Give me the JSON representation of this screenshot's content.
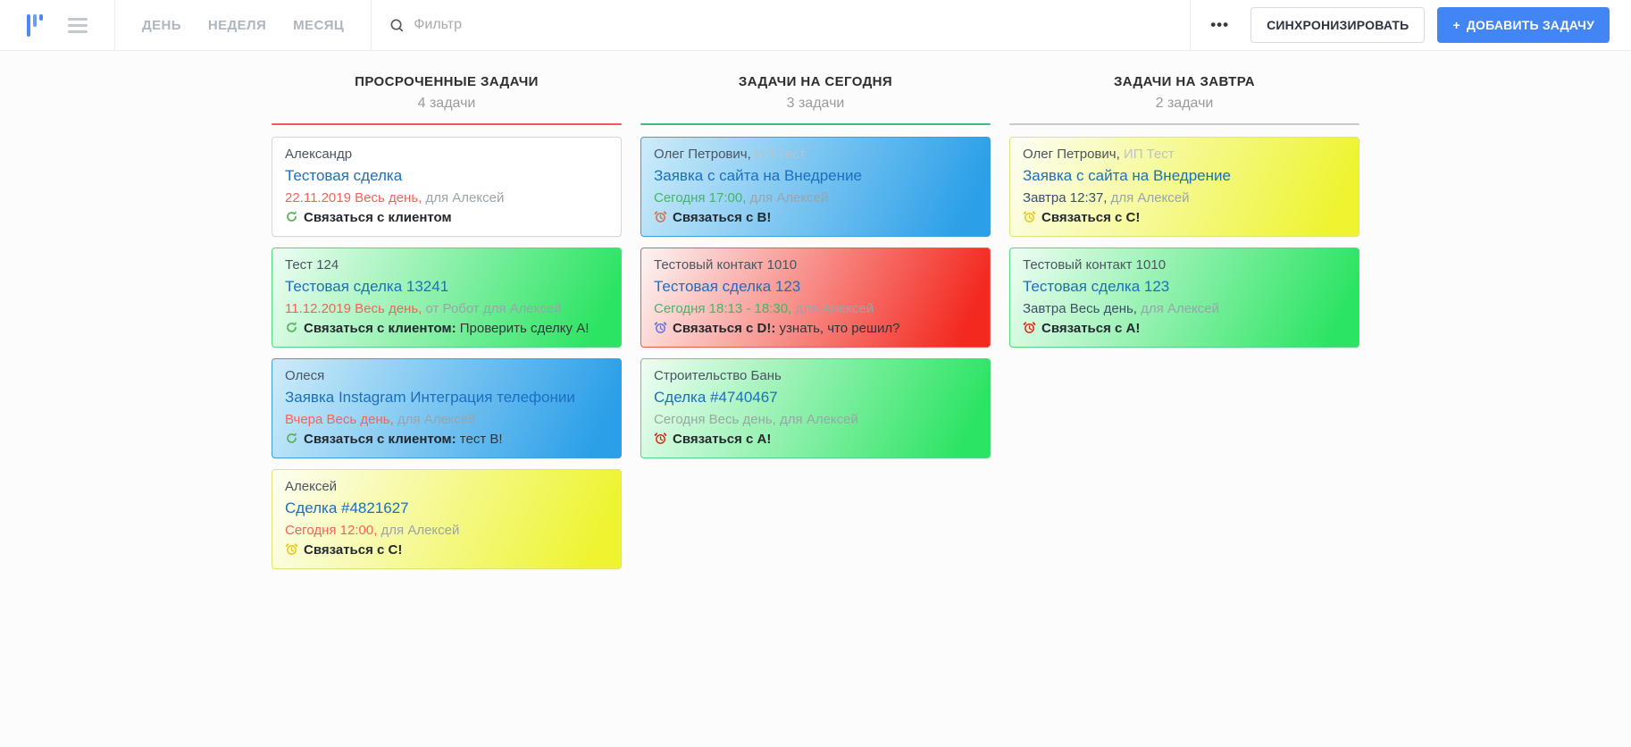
{
  "topbar": {
    "tabs": [
      {
        "label": "ДЕНЬ"
      },
      {
        "label": "НЕДЕЛЯ"
      },
      {
        "label": "МЕСЯЦ"
      }
    ],
    "filter_placeholder": "Фильтр",
    "filter_value": "",
    "more_label": "•••",
    "sync_label": "СИНХРОНИЗИРОВАТЬ",
    "add_button": {
      "icon": "+",
      "label": "ДОБАВИТЬ ЗАДАЧУ",
      "color": "#4285f4"
    }
  },
  "board": {
    "columns": [
      {
        "title": "ПРОСРОЧЕННЫЕ ЗАДАЧИ",
        "count": "4 задачи",
        "underline_color": "#f15b55",
        "cards": [
          {
            "contact": "Александр",
            "company": "",
            "title": "Тестовая сделка",
            "when": "22.11.2019 Весь день,",
            "when_color": "#f2635c",
            "audience": "для Алексей",
            "icon": "recurring",
            "icon_color": "#56b356",
            "action": "Связаться с клиентом",
            "note": "",
            "bg_from": "#ffffff",
            "bg_to": "#ffffff",
            "border": "#d6d6d6"
          },
          {
            "contact": "Тест 124",
            "company": "",
            "title": "Тестовая сделка 13241",
            "when": "11.12.2019 Весь день,",
            "when_color": "#f2635c",
            "audience": "от Робот для Алексей",
            "icon": "recurring",
            "icon_color": "#56b356",
            "action": "Связаться с клиентом:",
            "note": " Проверить сделку А!",
            "bg_from": "#eefdf3",
            "bg_to": "#2ce463",
            "border": "#52d87e"
          },
          {
            "contact": "Олеся",
            "company": "",
            "title": "Заявка Instagram Интеграция телефонии",
            "when": "Вчера Весь день,",
            "when_color": "#f2635c",
            "audience": "для Алексей",
            "icon": "recurring",
            "icon_color": "#56b356",
            "action": "Связаться с клиентом:",
            "note": " тест В!",
            "bg_from": "#cdecfa",
            "bg_to": "#2b9fe8",
            "border": "#3e9ddb"
          },
          {
            "contact": "Алексей",
            "company": "",
            "title": "Сделка #4821627",
            "when": "Сегодня 12:00,",
            "when_color": "#f2635c",
            "audience": "для Алексей",
            "icon": "alarm",
            "icon_color": "#e5c71c",
            "action": "Связаться с С!",
            "note": "",
            "bg_from": "#fdfef4",
            "bg_to": "#eef42f",
            "border": "#dfe478"
          }
        ]
      },
      {
        "title": "ЗАДАЧИ НА СЕГОДНЯ",
        "count": "3 задачи",
        "underline_color": "#45ba7f",
        "cards": [
          {
            "contact": "Олег Петрович,",
            "company": " ИП Тест",
            "title": "Заявка с сайта на Внедрение",
            "when": "Сегодня 17:00,",
            "when_color": "#45b466",
            "audience": "для Алексей",
            "icon": "alarm",
            "icon_color": "#e4683c",
            "action": "Связаться с В!",
            "note": "",
            "bg_from": "#cdecfa",
            "bg_to": "#2b9fe8",
            "border": "#3e9ddb"
          },
          {
            "contact": "Тестовый контакт 1010",
            "company": "",
            "title": "Тестовая сделка 123",
            "when": "Сегодня 18:13 - 18:30,",
            "when_color": "#45b466",
            "audience": "для Алексей",
            "icon": "alarm",
            "icon_color": "#5b74e8",
            "action": "Связаться с D!:",
            "note": " узнать, что решил?",
            "bg_from": "#fdf4f3",
            "bg_to": "#f3281f",
            "border": "#e85c55"
          },
          {
            "contact": "Строительство Бань",
            "company": "",
            "title": "Сделка #4740467",
            "when": "Сегодня Весь день,",
            "when_color": "#98a8a0",
            "audience": "для Алексей",
            "icon": "alarm",
            "icon_color": "#e0261b",
            "action": "Связаться с А!",
            "note": "",
            "bg_from": "#eefdf3",
            "bg_to": "#2ce463",
            "border": "#52d87e"
          }
        ]
      },
      {
        "title": "ЗАДАЧИ НА ЗАВТРА",
        "count": "2 задачи",
        "underline_color": "#c9c9c9",
        "cards": [
          {
            "contact": "Олег Петрович,",
            "company": " ИП Тест",
            "title": "Заявка с сайта на Внедрение",
            "when": "Завтра 12:37,",
            "when_color": "#3d5166",
            "audience": "для Алексей",
            "icon": "alarm",
            "icon_color": "#e5c71c",
            "action": "Связаться с С!",
            "note": "",
            "bg_from": "#fdfef4",
            "bg_to": "#eef42f",
            "border": "#dfe478"
          },
          {
            "contact": "Тестовый контакт 1010",
            "company": "",
            "title": "Тестовая сделка 123",
            "when": "Завтра Весь день,",
            "when_color": "#3d5166",
            "audience": "для Алексей",
            "icon": "alarm",
            "icon_color": "#e0261b",
            "action": "Связаться с А!",
            "note": "",
            "bg_from": "#eefdf3",
            "bg_to": "#2ce463",
            "border": "#52d87e"
          }
        ]
      }
    ]
  }
}
